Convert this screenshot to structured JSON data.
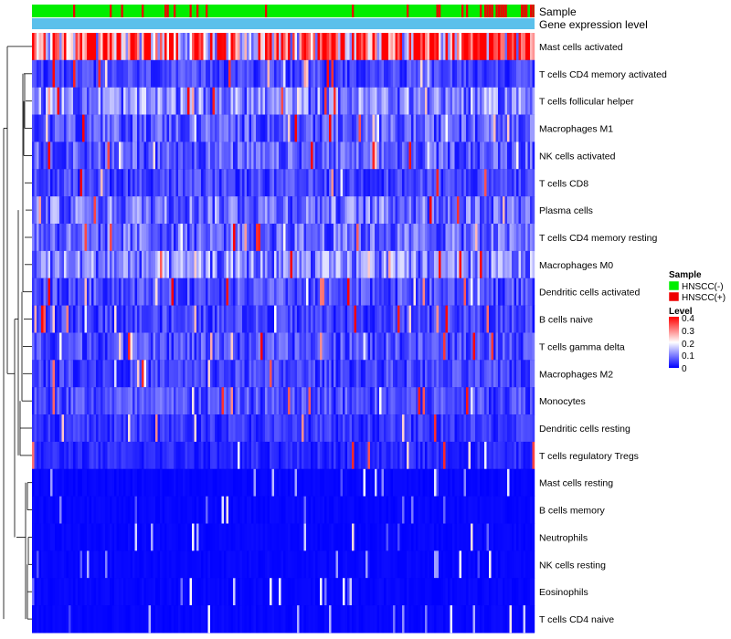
{
  "chart_data": {
    "type": "heatmap",
    "title": "",
    "annotations": [
      {
        "name": "Sample"
      },
      {
        "name": "Gene expression level"
      }
    ],
    "rows": [
      "Mast cells activated",
      "T cells CD4 memory activated",
      "T cells follicular helper",
      "Macrophages M1",
      "NK cells activated",
      "T cells CD8",
      "Plasma cells",
      "T cells CD4 memory resting",
      "Macrophages M0",
      "Dendritic cells activated",
      "B cells naive",
      "T cells gamma delta",
      "Macrophages M2",
      "Monocytes",
      "Dendritic cells resting",
      "T cells regulatory  Tregs",
      "Mast cells resting",
      "B cells memory",
      "Neutrophils",
      "NK cells resting",
      "Eosinophils",
      "T cells CD4 naive"
    ],
    "row_mean_levels": [
      0.3,
      0.05,
      0.1,
      0.07,
      0.07,
      0.05,
      0.09,
      0.08,
      0.1,
      0.06,
      0.05,
      0.06,
      0.05,
      0.06,
      0.04,
      0.03,
      0.01,
      0.01,
      0.01,
      0.01,
      0.01,
      0.01
    ],
    "n_samples": 220,
    "sample_legend": {
      "title": "Sample",
      "items": [
        {
          "label": "HNSCC(-)",
          "color": "#00ee00"
        },
        {
          "label": "HNSCC(+)",
          "color": "#ee0000"
        }
      ]
    },
    "level_legend": {
      "title": "Level",
      "ticks": [
        "0.4",
        "0.3",
        "0.2",
        "0.1",
        "0"
      ],
      "range": [
        0,
        0.4
      ],
      "colors": [
        "#0000ff",
        "#ffffff",
        "#ff0000"
      ]
    },
    "expression_bar_color": "#5bc0eb"
  }
}
